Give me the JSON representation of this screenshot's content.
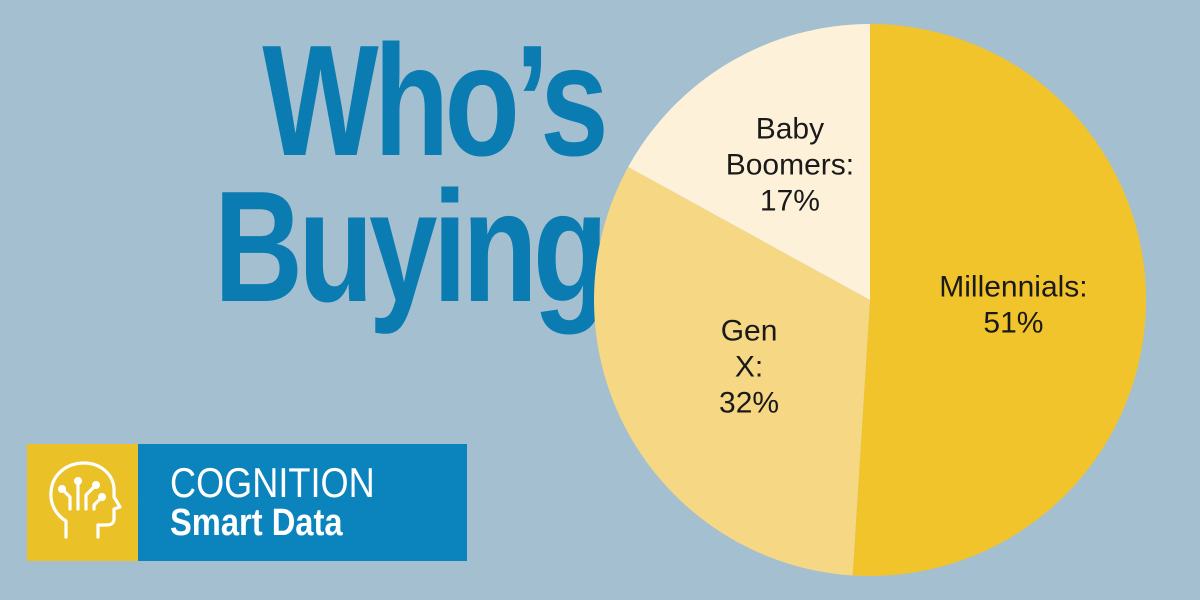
{
  "headline": {
    "line1": "Who’s",
    "line2": "Buying?"
  },
  "brand": {
    "line1": "COGNITION",
    "line2": "Smart Data",
    "icon": "head-circuit-icon"
  },
  "colors": {
    "background": "#a4bfcf",
    "headline": "#0a7cb2",
    "logo_yellow": "#ebc128",
    "logo_blue": "#0b83bd"
  },
  "chart_data": {
    "type": "pie",
    "slices": [
      {
        "label": "Millennials:",
        "value": 51,
        "value_label": "51%",
        "color": "#f2c42b"
      },
      {
        "label": "Gen X:",
        "value": 32,
        "value_label": "32%",
        "color": "#f5d784"
      },
      {
        "label": "Baby Boomers:",
        "value": 17,
        "value_label": "17%",
        "color": "#fdf2d9"
      }
    ]
  }
}
